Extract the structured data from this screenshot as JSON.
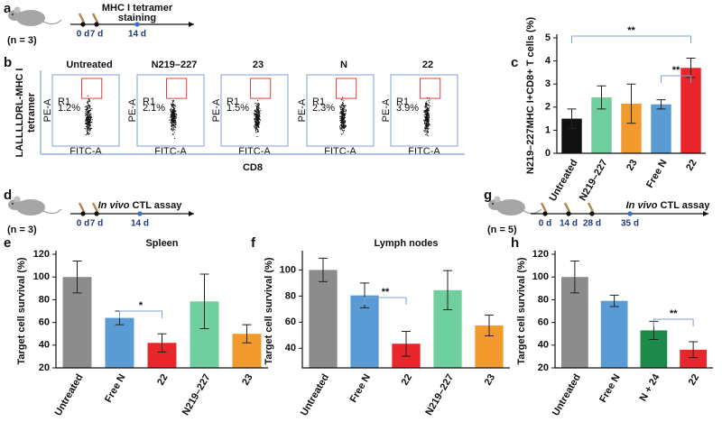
{
  "panels": [
    "a",
    "b",
    "c",
    "d",
    "e",
    "f",
    "g",
    "h"
  ],
  "timelines": [
    {
      "n": "(n = 3)",
      "days": [
        "0 d",
        "7 d",
        "14 d"
      ],
      "label": [
        "MHC I  tetramer",
        "staining"
      ]
    },
    {
      "n": "(n = 3)",
      "days": [
        "0 d",
        "7 d",
        "14 d"
      ],
      "italic": "In vivo",
      "label": [
        "CTL assay"
      ]
    },
    {
      "n": "(n = 5)",
      "days": [
        "0 d",
        "14 d",
        "28 d",
        "35 d"
      ],
      "italic": "In vivo",
      "label": [
        "CTL assay"
      ]
    }
  ],
  "flow": {
    "titles": [
      "Untreated",
      "N219–227",
      "23",
      "N",
      "22"
    ],
    "gate_name": "R1",
    "gates": [
      "1.2%",
      "2.1%",
      "1.5%",
      "2.3%",
      "3.9%"
    ],
    "y_label": [
      "LALLLLDRL-MHC I",
      "tetramer"
    ],
    "x_label": "CD8",
    "axis_x": "FITC-A",
    "axis_y": "PE-A"
  },
  "chart_data": [
    {
      "type": "bar",
      "y_label": "N219–227MHC I+CD8+ T cells (%)",
      "categories": [
        "Untreated",
        "N219–227",
        "23",
        "Free N",
        "22"
      ],
      "values": [
        1.5,
        2.42,
        2.15,
        2.12,
        3.7
      ],
      "errors": [
        0.42,
        0.5,
        0.85,
        0.2,
        0.42
      ],
      "colors": [
        "#111111",
        "#6fcf9f",
        "#f39a2e",
        "#5b9bd5",
        "#e8262b"
      ],
      "ylim": [
        0,
        5
      ],
      "yticks": [
        0,
        1,
        2,
        3,
        4,
        5
      ],
      "significance": [
        "**",
        "**"
      ]
    },
    {
      "type": "bar",
      "title": "Spleen",
      "y_label": "Target cell survival (%)",
      "categories": [
        "Untreated",
        "Free N",
        "22",
        "N219–227",
        "23"
      ],
      "values": [
        100,
        64,
        42,
        78.5,
        50
      ],
      "errors": [
        14,
        6,
        8,
        24,
        8
      ],
      "colors": [
        "#8c8c8c",
        "#5b9bd5",
        "#e8262b",
        "#6fcf9f",
        "#f39a2e"
      ],
      "ylim": [
        20,
        120
      ],
      "yticks": [
        20,
        40,
        60,
        80,
        100,
        120
      ],
      "significance": [
        "*"
      ]
    },
    {
      "type": "bar",
      "title": "Lymph nodes",
      "y_label": "Target cell survival (%)",
      "categories": [
        "Untreated",
        "Free N",
        "22",
        "N219–227",
        "23"
      ],
      "values": [
        100,
        80.5,
        43.5,
        84.5,
        57.5
      ],
      "errors": [
        9,
        9.5,
        9.5,
        15,
        8
      ],
      "colors": [
        "#8c8c8c",
        "#5b9bd5",
        "#e8262b",
        "#6fcf9f",
        "#f39a2e"
      ],
      "ylim": [
        25,
        112
      ],
      "yticks": [
        40,
        60,
        80,
        100
      ],
      "significance": [
        "**"
      ]
    },
    {
      "type": "bar",
      "y_label": "Target cell survival (%)",
      "categories": [
        "Untreated",
        "Free N",
        "N + 24",
        "22"
      ],
      "values": [
        100,
        79,
        53,
        36
      ],
      "errors": [
        14,
        5,
        8,
        7
      ],
      "colors": [
        "#8c8c8c",
        "#5b9bd5",
        "#1e8a4a",
        "#e8262b"
      ],
      "ylim": [
        20,
        120
      ],
      "yticks": [
        20,
        40,
        60,
        80,
        100,
        120
      ],
      "significance": [
        "**"
      ]
    }
  ]
}
